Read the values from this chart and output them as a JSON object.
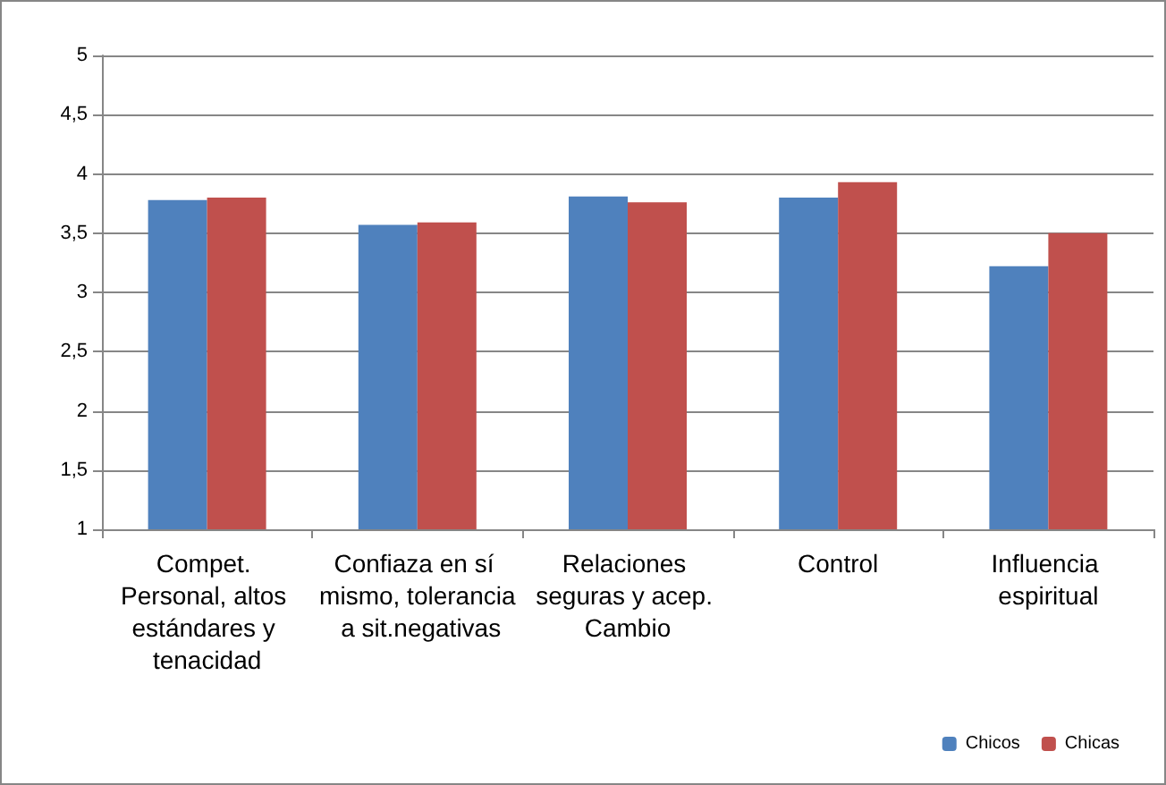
{
  "chart_data": {
    "type": "bar",
    "categories": [
      "Compet. Personal, altos estándares y tenacidad",
      "Confiaza en sí mismo, tolerancia a sit.negativas",
      "Relaciones seguras y acep. Cambio",
      "Control",
      "Influencia espiritual"
    ],
    "series": [
      {
        "name": "Chicos",
        "color": "#4f81bd",
        "values": [
          3.78,
          3.57,
          3.81,
          3.8,
          3.22
        ]
      },
      {
        "name": "Chicas",
        "color": "#c0504d",
        "values": [
          3.8,
          3.59,
          3.76,
          3.93,
          3.5
        ]
      }
    ],
    "ylim": [
      1,
      5
    ],
    "yticks": [
      1,
      {
        "value": 1.5,
        "label": "1,5"
      },
      2,
      {
        "value": 2.5,
        "label": "2,5"
      },
      3,
      {
        "value": 3.5,
        "label": "3,5"
      },
      4,
      {
        "value": 4.5,
        "label": "4,5"
      },
      5
    ],
    "grid": "y",
    "legend": "bottom right"
  }
}
